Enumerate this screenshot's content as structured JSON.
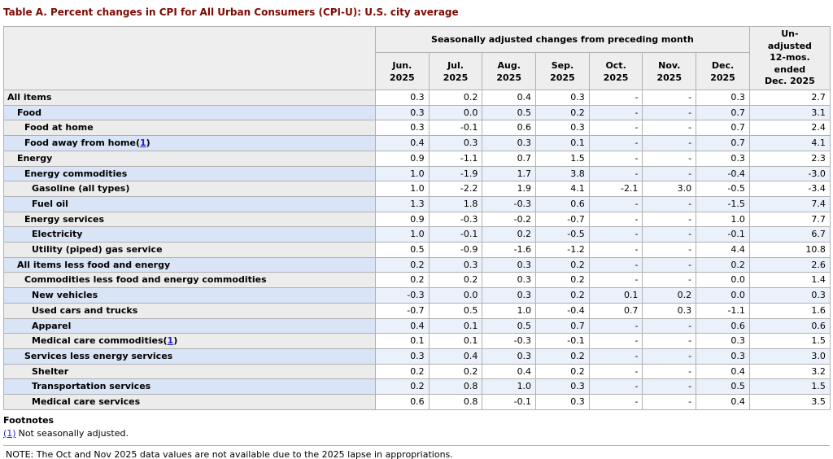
{
  "title": "Table A. Percent changes in CPI for All Urban Consumers (CPI-U): U.S. city average",
  "colors": {
    "title_text": "#7c0a02",
    "link": "#2323cc",
    "header_bg": "#eeeeee",
    "row_gray_label": "#ececec",
    "row_blue_label": "#d9e4f6",
    "row_blue_data": "#eaf1fa",
    "border": "#b1b1b1"
  },
  "table": {
    "group_header": "Seasonally adjusted changes from preceding month",
    "unadjusted_header": "Un-\nadjusted\n12-mos.\nended\nDec. 2025",
    "month_headers": [
      {
        "label": "Jun.\n2025"
      },
      {
        "label": "Jul.\n2025"
      },
      {
        "label": "Aug.\n2025"
      },
      {
        "label": "Sep.\n2025"
      },
      {
        "label": "Oct.\n2025"
      },
      {
        "label": "Nov.\n2025"
      },
      {
        "label": "Dec.\n2025"
      }
    ],
    "rows": [
      {
        "label": "All items",
        "indent": 0,
        "footnote_ref": "",
        "values": [
          "0.3",
          "0.2",
          "0.4",
          "0.3",
          "-",
          "-",
          "0.3",
          "2.7"
        ]
      },
      {
        "label": "Food",
        "indent": 1,
        "footnote_ref": "",
        "values": [
          "0.3",
          "0.0",
          "0.5",
          "0.2",
          "-",
          "-",
          "0.7",
          "3.1"
        ]
      },
      {
        "label": "Food at home",
        "indent": 2,
        "footnote_ref": "",
        "values": [
          "0.3",
          "-0.1",
          "0.6",
          "0.3",
          "-",
          "-",
          "0.7",
          "2.4"
        ]
      },
      {
        "label": "Food away from home",
        "indent": 2,
        "footnote_ref": "1",
        "values": [
          "0.4",
          "0.3",
          "0.3",
          "0.1",
          "-",
          "-",
          "0.7",
          "4.1"
        ]
      },
      {
        "label": "Energy",
        "indent": 1,
        "footnote_ref": "",
        "values": [
          "0.9",
          "-1.1",
          "0.7",
          "1.5",
          "-",
          "-",
          "0.3",
          "2.3"
        ]
      },
      {
        "label": "Energy commodities",
        "indent": 2,
        "footnote_ref": "",
        "values": [
          "1.0",
          "-1.9",
          "1.7",
          "3.8",
          "-",
          "-",
          "-0.4",
          "-3.0"
        ]
      },
      {
        "label": "Gasoline (all types)",
        "indent": 3,
        "footnote_ref": "",
        "values": [
          "1.0",
          "-2.2",
          "1.9",
          "4.1",
          "-2.1",
          "3.0",
          "-0.5",
          "-3.4"
        ]
      },
      {
        "label": "Fuel oil",
        "indent": 3,
        "footnote_ref": "",
        "values": [
          "1.3",
          "1.8",
          "-0.3",
          "0.6",
          "-",
          "-",
          "-1.5",
          "7.4"
        ]
      },
      {
        "label": "Energy services",
        "indent": 2,
        "footnote_ref": "",
        "values": [
          "0.9",
          "-0.3",
          "-0.2",
          "-0.7",
          "-",
          "-",
          "1.0",
          "7.7"
        ]
      },
      {
        "label": "Electricity",
        "indent": 3,
        "footnote_ref": "",
        "values": [
          "1.0",
          "-0.1",
          "0.2",
          "-0.5",
          "-",
          "-",
          "-0.1",
          "6.7"
        ]
      },
      {
        "label": "Utility (piped) gas service",
        "indent": 3,
        "footnote_ref": "",
        "values": [
          "0.5",
          "-0.9",
          "-1.6",
          "-1.2",
          "-",
          "-",
          "4.4",
          "10.8"
        ]
      },
      {
        "label": "All items less food and energy",
        "indent": 1,
        "footnote_ref": "",
        "values": [
          "0.2",
          "0.3",
          "0.3",
          "0.2",
          "-",
          "-",
          "0.2",
          "2.6"
        ]
      },
      {
        "label": "Commodities less food and energy commodities",
        "indent": 2,
        "footnote_ref": "",
        "values": [
          "0.2",
          "0.2",
          "0.3",
          "0.2",
          "-",
          "-",
          "0.0",
          "1.4"
        ]
      },
      {
        "label": "New vehicles",
        "indent": 3,
        "footnote_ref": "",
        "values": [
          "-0.3",
          "0.0",
          "0.3",
          "0.2",
          "0.1",
          "0.2",
          "0.0",
          "0.3"
        ]
      },
      {
        "label": "Used cars and trucks",
        "indent": 3,
        "footnote_ref": "",
        "values": [
          "-0.7",
          "0.5",
          "1.0",
          "-0.4",
          "0.7",
          "0.3",
          "-1.1",
          "1.6"
        ]
      },
      {
        "label": "Apparel",
        "indent": 3,
        "footnote_ref": "",
        "values": [
          "0.4",
          "0.1",
          "0.5",
          "0.7",
          "-",
          "-",
          "0.6",
          "0.6"
        ]
      },
      {
        "label": "Medical care commodities",
        "indent": 3,
        "footnote_ref": "1",
        "values": [
          "0.1",
          "0.1",
          "-0.3",
          "-0.1",
          "-",
          "-",
          "0.3",
          "1.5"
        ]
      },
      {
        "label": "Services less energy services",
        "indent": 2,
        "footnote_ref": "",
        "values": [
          "0.3",
          "0.4",
          "0.3",
          "0.2",
          "-",
          "-",
          "0.3",
          "3.0"
        ]
      },
      {
        "label": "Shelter",
        "indent": 3,
        "footnote_ref": "",
        "values": [
          "0.2",
          "0.2",
          "0.4",
          "0.2",
          "-",
          "-",
          "0.4",
          "3.2"
        ]
      },
      {
        "label": "Transportation services",
        "indent": 3,
        "footnote_ref": "",
        "values": [
          "0.2",
          "0.8",
          "1.0",
          "0.3",
          "-",
          "-",
          "0.5",
          "1.5"
        ]
      },
      {
        "label": "Medical care services",
        "indent": 3,
        "footnote_ref": "",
        "values": [
          "0.6",
          "0.8",
          "-0.1",
          "0.3",
          "-",
          "-",
          "0.4",
          "3.5"
        ]
      }
    ]
  },
  "footnotes": {
    "heading": "Footnotes",
    "items": [
      {
        "marker": "(1)",
        "text": "Not seasonally adjusted."
      }
    ],
    "note": "NOTE: The Oct and Nov 2025 data values are not available due to the 2025 lapse in appropriations."
  }
}
